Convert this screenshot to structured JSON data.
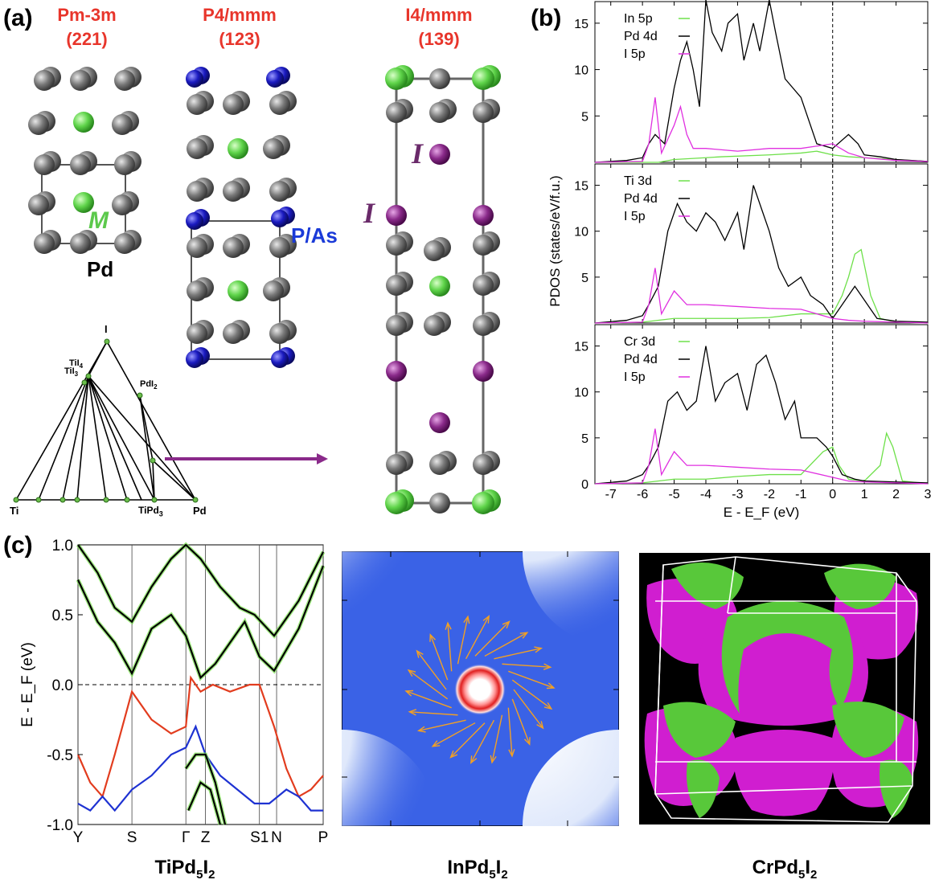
{
  "figure": {
    "panel_a_label": "(a)",
    "panel_b_label": "(b)",
    "panel_c_label": "(c)",
    "structures": [
      {
        "name": "Pm-3m",
        "number": "(221)"
      },
      {
        "name": "P4/mmm",
        "number": "(123)"
      },
      {
        "name": "I4/mmm",
        "number": "(139)"
      }
    ],
    "atom_labels": {
      "m": "M",
      "pd": "Pd",
      "pas": "P/As",
      "i_top": "I",
      "i_side": "I"
    },
    "atom_colors": {
      "pd": "#6e6e6e",
      "m": "#5fd44a",
      "pas": "#1a1aaa",
      "i": "#8a2a8a"
    },
    "hull": {
      "vertices": [
        "Ti",
        "Pd",
        "I"
      ],
      "phases": [
        "TiI4",
        "TiI3",
        "PdI2",
        "TiPd3"
      ]
    },
    "captions": {
      "c1": "TiPd",
      "c1_s1": "5",
      "c1_m": "I",
      "c1_s2": "2",
      "c2": "InPd",
      "c2_s1": "5",
      "c2_m": "I",
      "c2_s2": "2",
      "c3": "CrPd",
      "c3_s1": "5",
      "c3_m": "I",
      "c3_s2": "2"
    }
  },
  "chart_data": [
    {
      "type": "line",
      "ylabel": "PDOS (states/eV/f.u.)",
      "xlabel": "E - E_F (eV)",
      "xlim": [
        -7.5,
        3
      ],
      "xticks": [
        "-7",
        "-6",
        "-5",
        "-4",
        "-3",
        "-2",
        "-1",
        "0",
        "1",
        "2",
        "3"
      ],
      "panels": [
        {
          "ylim": [
            0,
            17.5
          ],
          "yticks": [
            "5",
            "10",
            "15"
          ],
          "legend": [
            "In 5p",
            "Pd 4d",
            "I 5p"
          ],
          "series": [
            {
              "color": "#6ee04a",
              "x": [
                -7.5,
                -5.5,
                -5,
                -4.5,
                -4,
                -3.5,
                -2,
                -1,
                -0.5,
                0,
                0.5,
                1,
                2,
                3
              ],
              "y": [
                0,
                0,
                0.3,
                0.4,
                0.5,
                0.6,
                0.8,
                1,
                1.2,
                0.8,
                0.6,
                0.5,
                0.3,
                0.1
              ]
            },
            {
              "color": "#000000",
              "x": [
                -7.5,
                -6.5,
                -6,
                -5.8,
                -5.6,
                -5.3,
                -5,
                -4.8,
                -4.6,
                -4.4,
                -4.2,
                -4,
                -3.8,
                -3.5,
                -3.3,
                -3,
                -2.8,
                -2.5,
                -2.3,
                -2,
                -1.8,
                -1.5,
                -1,
                -0.5,
                0,
                0.5,
                0.8,
                1,
                1.5,
                2,
                2.5,
                3
              ],
              "y": [
                0,
                0.2,
                0.5,
                2,
                3,
                2,
                8,
                11,
                13,
                10,
                6,
                19,
                14,
                12,
                15,
                16,
                11,
                15,
                12,
                22,
                14,
                9,
                7,
                2,
                1.5,
                3,
                2,
                0.8,
                0.6,
                0.3,
                0.2,
                0.1
              ]
            },
            {
              "color": "#e030e0",
              "x": [
                -7.5,
                -6,
                -5.8,
                -5.6,
                -5.4,
                -5,
                -4.8,
                -4.6,
                -4.4,
                -4,
                -3,
                -2,
                -1,
                0,
                0.5,
                1,
                2,
                3
              ],
              "y": [
                0,
                0.1,
                2,
                7,
                1,
                4,
                6,
                3,
                1.5,
                1.5,
                1.2,
                1.5,
                1.5,
                2,
                1,
                0.5,
                0.2,
                0.1
              ]
            }
          ]
        },
        {
          "ylim": [
            0,
            17.5
          ],
          "yticks": [
            "5",
            "10",
            "15"
          ],
          "legend": [
            "Ti 3d",
            "Pd 4d",
            "I 5p"
          ],
          "series": [
            {
              "color": "#6ee04a",
              "x": [
                -7.5,
                -6,
                -5,
                -4,
                -3,
                -2,
                -1,
                0,
                0.3,
                0.5,
                0.7,
                0.9,
                1.2,
                1.5,
                2,
                3
              ],
              "y": [
                0,
                0.1,
                0.5,
                0.5,
                0.5,
                0.6,
                1,
                1,
                3,
                5,
                7.5,
                8,
                3,
                0.5,
                0.1,
                0
              ]
            },
            {
              "color": "#000000",
              "x": [
                -7.5,
                -6.5,
                -6,
                -5.8,
                -5.5,
                -5.2,
                -4.9,
                -4.6,
                -4.3,
                -4,
                -3.7,
                -3.4,
                -3,
                -2.8,
                -2.5,
                -2.2,
                -2,
                -1.7,
                -1.4,
                -1,
                -0.7,
                -0.3,
                0,
                0.3,
                0.7,
                1,
                1.4,
                2,
                3
              ],
              "y": [
                0,
                0.3,
                0.8,
                2,
                4,
                10,
                13,
                11,
                10,
                12,
                11,
                9,
                12,
                8,
                15,
                12,
                10,
                6,
                4,
                5,
                3,
                2,
                0.5,
                2,
                4,
                2.5,
                0.5,
                0.2,
                0.1
              ]
            },
            {
              "color": "#e030e0",
              "x": [
                -7.5,
                -6,
                -5.8,
                -5.6,
                -5.4,
                -5,
                -4.6,
                -4,
                -3,
                -2,
                -1,
                0,
                0.5,
                1,
                2,
                3
              ],
              "y": [
                0,
                0.1,
                2,
                6,
                1,
                3.5,
                2,
                2,
                1.8,
                1.6,
                1.5,
                0.5,
                0.3,
                0.2,
                0.1,
                0
              ]
            }
          ]
        },
        {
          "ylim": [
            0,
            17.5
          ],
          "yticks": [
            "0",
            "5",
            "10",
            "15"
          ],
          "legend": [
            "Cr 3d",
            "Pd 4d",
            "I 5p"
          ],
          "series": [
            {
              "color": "#6ee04a",
              "x": [
                -7.5,
                -6,
                -5,
                -4,
                -3,
                -2,
                -1,
                -0.3,
                0,
                0.2,
                0.5,
                1,
                1.5,
                1.7,
                1.9,
                2.2,
                3
              ],
              "y": [
                0,
                0.1,
                0.5,
                0.5,
                0.8,
                1,
                1,
                3.5,
                4,
                2,
                0.5,
                0.3,
                2,
                5.5,
                4,
                0.3,
                0
              ]
            },
            {
              "color": "#000000",
              "x": [
                -7.5,
                -6.5,
                -6,
                -5.8,
                -5.5,
                -5.2,
                -4.9,
                -4.6,
                -4.3,
                -4,
                -3.7,
                -3.4,
                -3,
                -2.7,
                -2.4,
                -2.1,
                -1.8,
                -1.5,
                -1.2,
                -1,
                -0.5,
                -0.2,
                0,
                0.3,
                0.7,
                1,
                2,
                3
              ],
              "y": [
                0,
                0.3,
                1,
                2,
                4,
                9,
                10,
                8,
                9,
                15,
                9,
                11,
                12,
                8,
                13,
                14,
                11,
                7,
                9,
                5,
                5,
                4,
                3,
                1,
                0.5,
                0.3,
                0.2,
                0.1
              ]
            },
            {
              "color": "#e030e0",
              "x": [
                -7.5,
                -6,
                -5.8,
                -5.6,
                -5.4,
                -5,
                -4.6,
                -4,
                -3,
                -2,
                -1,
                0,
                0.5,
                1,
                2,
                3
              ],
              "y": [
                0,
                0.1,
                2,
                6,
                1,
                3.5,
                2,
                2,
                1.8,
                1.6,
                1.5,
                0.7,
                0.3,
                0.2,
                0.1,
                0
              ]
            }
          ]
        }
      ]
    },
    {
      "type": "line",
      "ylabel": "E - E_F (eV)",
      "ylim": [
        -1.0,
        1.0
      ],
      "yticks": [
        "-1.0",
        "-0.5",
        "0.0",
        "0.5",
        "1.0"
      ],
      "kpoints": [
        "Y",
        "S",
        "Γ",
        "Z",
        "S1",
        "N",
        "P"
      ],
      "kpos": [
        0,
        0.22,
        0.44,
        0.52,
        0.74,
        0.81,
        1.0
      ],
      "series": [
        {
          "color": "#e23c1e",
          "x": [
            0,
            0.05,
            0.1,
            0.15,
            0.22,
            0.3,
            0.38,
            0.44,
            0.46,
            0.5,
            0.55,
            0.62,
            0.7,
            0.74,
            0.8,
            0.85,
            0.9,
            0.95,
            1.0
          ],
          "y": [
            -0.5,
            -0.7,
            -0.8,
            -0.5,
            -0.05,
            -0.25,
            -0.35,
            -0.3,
            0.05,
            -0.05,
            0.0,
            -0.05,
            0.0,
            0.0,
            -0.3,
            -0.6,
            -0.8,
            -0.75,
            -0.65
          ]
        },
        {
          "color": "#1e32d2",
          "x": [
            0,
            0.05,
            0.1,
            0.15,
            0.22,
            0.3,
            0.38,
            0.44,
            0.48,
            0.52,
            0.58,
            0.65,
            0.72,
            0.78,
            0.85,
            0.9,
            0.95,
            1.0
          ],
          "y": [
            -0.85,
            -0.9,
            -0.8,
            -0.9,
            -0.75,
            -0.65,
            -0.5,
            -0.45,
            -0.3,
            -0.5,
            -0.65,
            -0.75,
            -0.85,
            -0.85,
            -0.75,
            -0.8,
            -0.9,
            -0.9
          ]
        },
        {
          "color": "#000000",
          "x": [
            0,
            0.08,
            0.15,
            0.22,
            0.3,
            0.38,
            0.44,
            0.5,
            0.56,
            0.62,
            0.68,
            0.74,
            0.8,
            0.9,
            1.0
          ],
          "y": [
            0.75,
            0.45,
            0.3,
            0.08,
            0.4,
            0.5,
            0.35,
            0.05,
            0.15,
            0.3,
            0.45,
            0.2,
            0.1,
            0.4,
            0.85
          ]
        },
        {
          "color": "#000000",
          "x": [
            0,
            0.08,
            0.15,
            0.22,
            0.3,
            0.38,
            0.44,
            0.5,
            0.58,
            0.66,
            0.72,
            0.8,
            0.9,
            1.0
          ],
          "y": [
            1.0,
            0.8,
            0.55,
            0.45,
            0.7,
            0.9,
            1.0,
            0.9,
            0.7,
            0.55,
            0.5,
            0.35,
            0.6,
            0.95
          ]
        },
        {
          "color": "#000000",
          "x": [
            0.44,
            0.48,
            0.52,
            0.56,
            0.6
          ],
          "y": [
            -0.6,
            -0.5,
            -0.5,
            -0.7,
            -1.0
          ]
        },
        {
          "color": "#000000",
          "x": [
            0.45,
            0.5,
            0.54,
            0.58
          ],
          "y": [
            -0.9,
            -0.7,
            -0.75,
            -1.0
          ]
        }
      ]
    }
  ]
}
